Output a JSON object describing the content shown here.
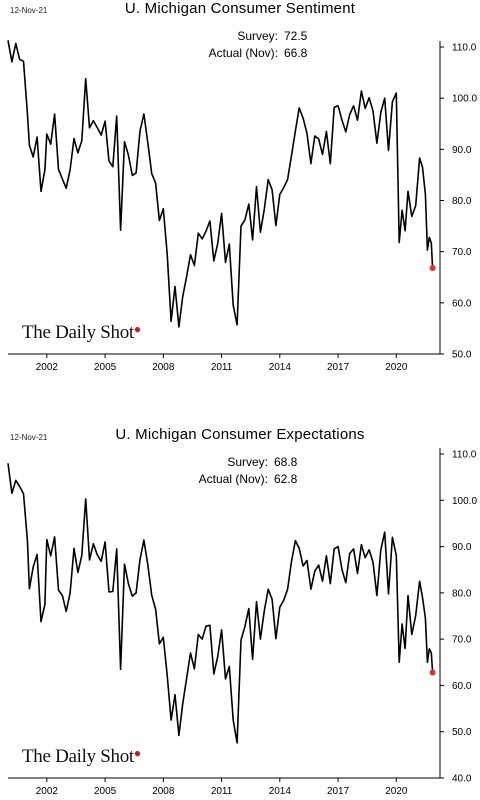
{
  "chart_data": [
    {
      "type": "line",
      "date_label": "12-Nov-21",
      "title": "U. Michigan Consumer Sentiment",
      "annotation": [
        {
          "label": "Survey:",
          "value": "72.5"
        },
        {
          "label": "Actual (Nov):",
          "value": "66.8"
        }
      ],
      "watermark": "The Daily Shot",
      "xlabel": "",
      "ylabel": "",
      "ylim": [
        50,
        110
      ],
      "y_ticks": [
        "50.0",
        "60.0",
        "70.0",
        "80.0",
        "90.0",
        "100.0",
        "110.0"
      ],
      "x_ticks": [
        "2002",
        "2005",
        "2008",
        "2011",
        "2014",
        "2017",
        "2020"
      ],
      "x_tick_values": [
        2002,
        2005,
        2008,
        2011,
        2014,
        2017,
        2020
      ],
      "xlim": [
        2000.0,
        2022.25
      ],
      "highlight_color": "#e03030",
      "line_color": "#000000",
      "highlight_point": {
        "x": 2021.87,
        "y": 66.8
      },
      "series": [
        {
          "x": [
            2000.0,
            2000.2,
            2000.4,
            2000.6,
            2000.8,
            2001.0,
            2001.1,
            2001.3,
            2001.5,
            2001.7,
            2001.9,
            2002.0,
            2002.2,
            2002.4,
            2002.6,
            2002.8,
            2003.0,
            2003.2,
            2003.4,
            2003.6,
            2003.8,
            2004.0,
            2004.2,
            2004.4,
            2004.6,
            2004.8,
            2005.0,
            2005.2,
            2005.4,
            2005.6,
            2005.8,
            2006.0,
            2006.2,
            2006.4,
            2006.6,
            2006.8,
            2007.0,
            2007.2,
            2007.4,
            2007.6,
            2007.8,
            2008.0,
            2008.2,
            2008.4,
            2008.6,
            2008.8,
            2009.0,
            2009.2,
            2009.4,
            2009.6,
            2009.8,
            2010.0,
            2010.2,
            2010.4,
            2010.6,
            2010.8,
            2011.0,
            2011.2,
            2011.4,
            2011.6,
            2011.8,
            2012.0,
            2012.2,
            2012.4,
            2012.6,
            2012.8,
            2013.0,
            2013.2,
            2013.4,
            2013.6,
            2013.8,
            2014.0,
            2014.2,
            2014.4,
            2014.6,
            2014.8,
            2015.0,
            2015.2,
            2015.4,
            2015.6,
            2015.8,
            2016.0,
            2016.2,
            2016.4,
            2016.6,
            2016.8,
            2017.0,
            2017.2,
            2017.4,
            2017.6,
            2017.8,
            2018.0,
            2018.2,
            2018.4,
            2018.6,
            2018.8,
            2019.0,
            2019.2,
            2019.4,
            2019.6,
            2019.8,
            2020.0,
            2020.15,
            2020.3,
            2020.45,
            2020.6,
            2020.8,
            2021.0,
            2021.2,
            2021.35,
            2021.5,
            2021.6,
            2021.7,
            2021.8,
            2021.87
          ],
          "y": [
            111.3,
            107.1,
            110.7,
            107.6,
            107.2,
            97.0,
            90.8,
            88.5,
            92.4,
            81.8,
            86.0,
            93.0,
            91.0,
            96.9,
            86.1,
            84.2,
            82.4,
            86.0,
            92.1,
            89.3,
            91.7,
            103.8,
            94.2,
            95.6,
            94.2,
            92.8,
            95.5,
            87.7,
            86.6,
            96.5,
            74.2,
            91.5,
            88.9,
            84.9,
            85.4,
            93.6,
            96.9,
            91.3,
            85.3,
            83.4,
            76.1,
            78.4,
            69.5,
            56.4,
            63.2,
            55.3,
            61.2,
            65.1,
            69.4,
            67.3,
            73.6,
            72.5,
            74.0,
            76.0,
            68.2,
            71.6,
            77.5,
            67.9,
            71.5,
            59.5,
            55.7,
            75.0,
            76.2,
            79.3,
            72.3,
            82.7,
            73.8,
            78.3,
            84.1,
            82.1,
            75.1,
            81.2,
            82.5,
            84.1,
            88.8,
            93.6,
            98.1,
            96.1,
            93.1,
            87.2,
            92.6,
            92.0,
            89.0,
            93.5,
            87.2,
            98.2,
            98.5,
            95.7,
            93.4,
            96.8,
            98.5,
            95.7,
            101.4,
            98.0,
            100.1,
            97.5,
            91.2,
            97.2,
            100.0,
            89.8,
            99.3,
            101.0,
            71.8,
            78.1,
            74.1,
            81.8,
            76.9,
            79.0,
            88.3,
            86.5,
            81.2,
            70.3,
            72.8,
            71.7,
            66.8
          ]
        }
      ]
    },
    {
      "type": "line",
      "date_label": "12-Nov-21",
      "title": "U. Michigan Consumer Expectations",
      "annotation": [
        {
          "label": "Survey:",
          "value": "68.8"
        },
        {
          "label": "Actual (Nov):",
          "value": "62.8"
        }
      ],
      "watermark": "The Daily Shot",
      "xlabel": "",
      "ylabel": "",
      "ylim": [
        40,
        110
      ],
      "y_ticks": [
        "40.0",
        "50.0",
        "60.0",
        "70.0",
        "80.0",
        "90.0",
        "100.0",
        "110.0"
      ],
      "x_ticks": [
        "2002",
        "2005",
        "2008",
        "2011",
        "2014",
        "2017",
        "2020"
      ],
      "x_tick_values": [
        2002,
        2005,
        2008,
        2011,
        2014,
        2017,
        2020
      ],
      "xlim": [
        2000.0,
        2022.25
      ],
      "highlight_color": "#e03030",
      "line_color": "#000000",
      "highlight_point": {
        "x": 2021.87,
        "y": 62.8
      },
      "series": [
        {
          "x": [
            2000.0,
            2000.2,
            2000.4,
            2000.6,
            2000.8,
            2001.0,
            2001.1,
            2001.3,
            2001.5,
            2001.7,
            2001.9,
            2002.0,
            2002.2,
            2002.4,
            2002.6,
            2002.8,
            2003.0,
            2003.2,
            2003.4,
            2003.6,
            2003.8,
            2004.0,
            2004.2,
            2004.4,
            2004.6,
            2004.8,
            2005.0,
            2005.2,
            2005.4,
            2005.6,
            2005.8,
            2006.0,
            2006.2,
            2006.4,
            2006.6,
            2006.8,
            2007.0,
            2007.2,
            2007.4,
            2007.6,
            2007.8,
            2008.0,
            2008.2,
            2008.4,
            2008.6,
            2008.8,
            2009.0,
            2009.2,
            2009.4,
            2009.6,
            2009.8,
            2010.0,
            2010.2,
            2010.4,
            2010.6,
            2010.8,
            2011.0,
            2011.2,
            2011.4,
            2011.6,
            2011.8,
            2012.0,
            2012.2,
            2012.4,
            2012.6,
            2012.8,
            2013.0,
            2013.2,
            2013.4,
            2013.6,
            2013.8,
            2014.0,
            2014.2,
            2014.4,
            2014.6,
            2014.8,
            2015.0,
            2015.2,
            2015.4,
            2015.6,
            2015.8,
            2016.0,
            2016.2,
            2016.4,
            2016.6,
            2016.8,
            2017.0,
            2017.2,
            2017.4,
            2017.6,
            2017.8,
            2018.0,
            2018.2,
            2018.4,
            2018.6,
            2018.8,
            2019.0,
            2019.2,
            2019.4,
            2019.6,
            2019.8,
            2020.0,
            2020.15,
            2020.3,
            2020.45,
            2020.6,
            2020.8,
            2021.0,
            2021.2,
            2021.35,
            2021.5,
            2021.6,
            2021.7,
            2021.8,
            2021.87
          ],
          "y": [
            108.0,
            101.5,
            104.3,
            103.0,
            101.4,
            91.4,
            80.9,
            85.6,
            88.3,
            73.8,
            77.5,
            91.5,
            88.0,
            92.1,
            80.6,
            79.4,
            76.0,
            80.0,
            89.6,
            84.4,
            88.1,
            100.3,
            87.1,
            90.6,
            88.2,
            86.8,
            91.0,
            80.2,
            80.3,
            89.5,
            63.5,
            86.2,
            82.0,
            79.3,
            80.0,
            87.2,
            91.4,
            86.1,
            79.5,
            76.5,
            69.0,
            70.4,
            62.2,
            52.5,
            58.0,
            49.2,
            56.0,
            61.5,
            67.0,
            63.6,
            71.0,
            70.0,
            72.8,
            73.0,
            62.5,
            66.2,
            72.0,
            61.4,
            64.1,
            52.5,
            47.6,
            69.8,
            72.7,
            76.6,
            65.6,
            78.1,
            70.0,
            76.1,
            80.8,
            78.6,
            70.1,
            76.9,
            78.4,
            80.8,
            86.8,
            91.3,
            89.6,
            85.8,
            87.0,
            80.8,
            84.7,
            86.0,
            82.5,
            88.0,
            82.0,
            89.5,
            90.0,
            85.0,
            82.2,
            88.5,
            89.5,
            84.2,
            90.4,
            87.6,
            89.3,
            86.6,
            79.4,
            89.3,
            93.1,
            79.8,
            92.0,
            88.1,
            65.0,
            73.3,
            68.0,
            79.4,
            71.0,
            75.1,
            82.5,
            79.0,
            74.5,
            65.0,
            67.9,
            67.1,
            62.8
          ]
        }
      ]
    }
  ]
}
